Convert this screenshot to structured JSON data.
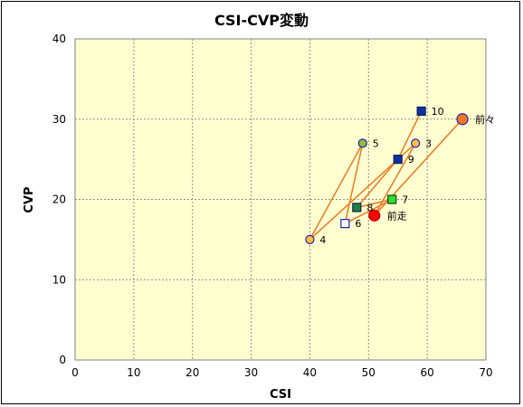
{
  "chart_data": {
    "type": "scatter",
    "title": "CSI-CVP変動",
    "xlabel": "CSI",
    "ylabel": "CVP",
    "xlim": [
      0,
      70
    ],
    "ylim": [
      0,
      40
    ],
    "xticks": [
      "0",
      "10",
      "20",
      "30",
      "40",
      "50",
      "60",
      "70"
    ],
    "yticks": [
      "0",
      "10",
      "20",
      "30",
      "40"
    ],
    "grid": true,
    "plot_background": "#ffffd0",
    "line_color": "#f07820",
    "path_order": [
      "前々",
      "前走",
      "3",
      "4",
      "5",
      "6",
      "7",
      "8",
      "9",
      "10"
    ],
    "points": [
      {
        "label": "前々",
        "x": 66,
        "y": 30,
        "shape": "circle",
        "fill": "#f07820",
        "stroke": "#2020c0"
      },
      {
        "label": "前走",
        "x": 51,
        "y": 18,
        "shape": "circle",
        "fill": "#ff0000",
        "stroke": "#c00000"
      },
      {
        "label": "3",
        "x": 58,
        "y": 27,
        "shape": "circle",
        "fill": "#ffc040",
        "stroke": "#2020c0"
      },
      {
        "label": "4",
        "x": 40,
        "y": 15,
        "shape": "circle",
        "fill": "#ffc040",
        "stroke": "#2020c0"
      },
      {
        "label": "5",
        "x": 49,
        "y": 27,
        "shape": "circle",
        "fill": "#90c030",
        "stroke": "#2020c0"
      },
      {
        "label": "6",
        "x": 46,
        "y": 17,
        "shape": "square",
        "fill": "#ffffff",
        "stroke": "#2020c0"
      },
      {
        "label": "7",
        "x": 54,
        "y": 20,
        "shape": "square",
        "fill": "#30e030",
        "stroke": "#104010"
      },
      {
        "label": "8",
        "x": 48,
        "y": 19,
        "shape": "square",
        "fill": "#208040",
        "stroke": "#102060"
      },
      {
        "label": "9",
        "x": 55,
        "y": 25,
        "shape": "square",
        "fill": "#1030a0",
        "stroke": "#102060"
      },
      {
        "label": "10",
        "x": 59,
        "y": 31,
        "shape": "square",
        "fill": "#1030a0",
        "stroke": "#102060"
      }
    ]
  }
}
